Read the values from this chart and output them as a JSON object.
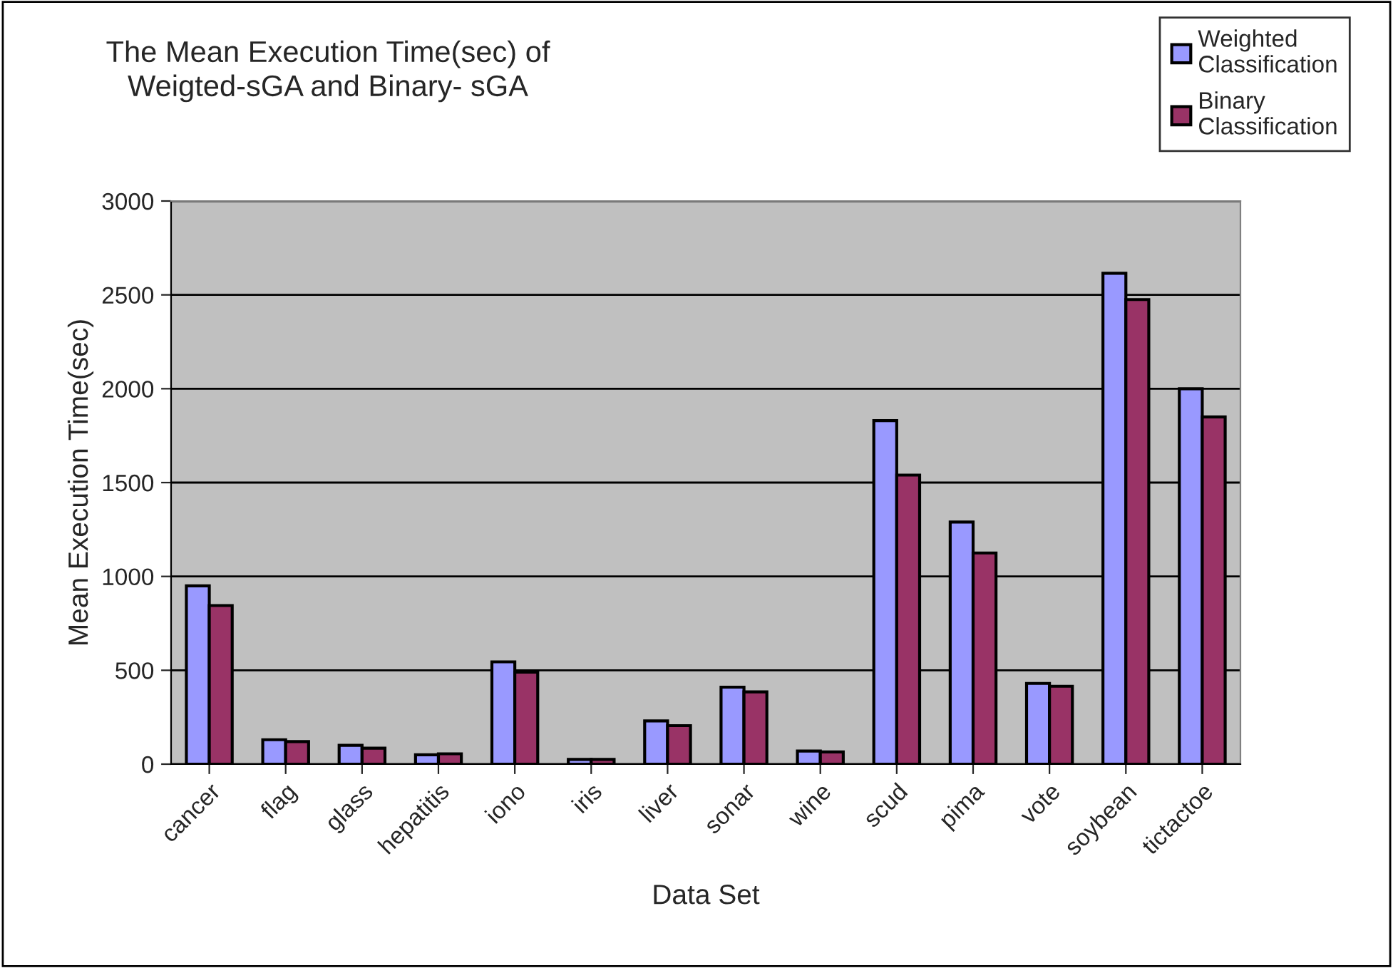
{
  "chart_data": {
    "type": "bar",
    "title": "The Mean Execution Time(sec) of\nWeigted-sGA and Binary- sGA",
    "xlabel": "Data Set",
    "ylabel": "Mean Execution Time(sec)",
    "categories": [
      "cancer",
      "flag",
      "glass",
      "hepatitis",
      "iono",
      "iris",
      "liver",
      "sonar",
      "wine",
      "scud",
      "pima",
      "vote",
      "soybean",
      "tictactoe"
    ],
    "series": [
      {
        "name": "Weighted\nClassification",
        "color": "#9999ff",
        "values": [
          950,
          130,
          100,
          50,
          545,
          25,
          230,
          410,
          70,
          1830,
          1290,
          430,
          2615,
          2000
        ]
      },
      {
        "name": "Binary\nClassification",
        "color": "#993366",
        "values": [
          845,
          120,
          85,
          55,
          490,
          25,
          205,
          385,
          65,
          1540,
          1125,
          415,
          2475,
          1850
        ]
      }
    ],
    "ylim": [
      0,
      3000
    ],
    "yticks": [
      0,
      500,
      1000,
      1500,
      2000,
      2500,
      3000
    ],
    "grid": "y",
    "legend": "top right"
  }
}
